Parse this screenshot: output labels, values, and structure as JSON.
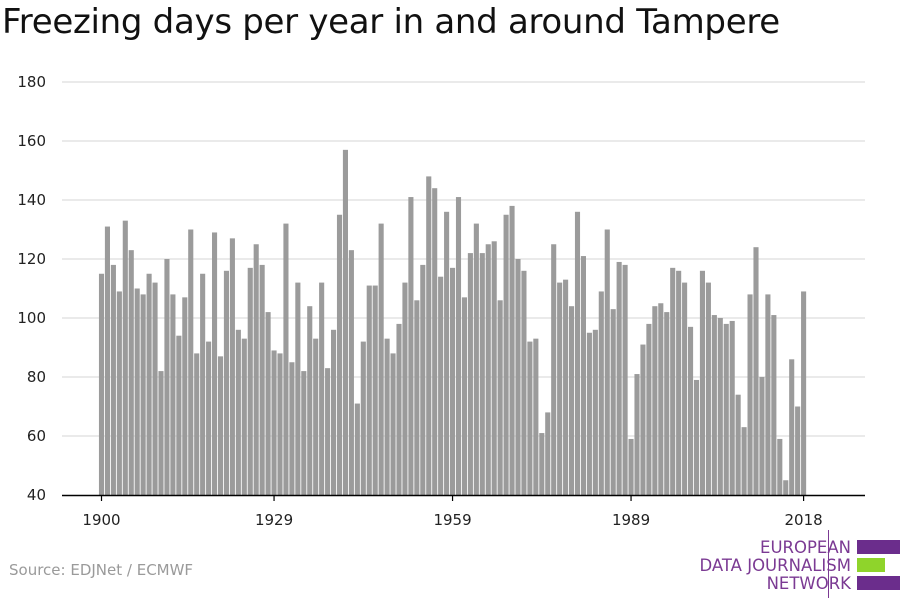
{
  "title": "Freezing days per year in and around Tampere",
  "source": "Source: EDJNet / ECMWF",
  "logo": {
    "lines": [
      "EUROPEAN",
      "DATA JOURNALISM",
      "NETWORK"
    ],
    "colors": {
      "purple": "#6b2d8c",
      "green": "#8fd42b",
      "text": "#7b3a93"
    }
  },
  "colors": {
    "bar": "#9b9b9b",
    "grid": "#dddddd",
    "axis": "#000000",
    "tick_text": "#222222"
  },
  "chart_data": {
    "type": "bar",
    "title": "Freezing days per year in and around Tampere",
    "xlabel": "",
    "ylabel": "",
    "ylim": [
      40,
      180
    ],
    "yticks": [
      40,
      60,
      80,
      100,
      120,
      140,
      160,
      180
    ],
    "xticks": [
      1900,
      1929,
      1959,
      1989,
      2018
    ],
    "grid": true,
    "x": [
      1900,
      1901,
      1902,
      1903,
      1904,
      1905,
      1906,
      1907,
      1908,
      1909,
      1910,
      1911,
      1912,
      1913,
      1914,
      1915,
      1916,
      1917,
      1918,
      1919,
      1920,
      1921,
      1922,
      1923,
      1924,
      1925,
      1926,
      1927,
      1928,
      1929,
      1930,
      1931,
      1932,
      1933,
      1934,
      1935,
      1936,
      1937,
      1938,
      1939,
      1940,
      1941,
      1942,
      1943,
      1944,
      1945,
      1946,
      1947,
      1948,
      1949,
      1950,
      1951,
      1952,
      1953,
      1954,
      1955,
      1956,
      1957,
      1958,
      1959,
      1960,
      1961,
      1962,
      1963,
      1964,
      1965,
      1966,
      1967,
      1968,
      1969,
      1970,
      1971,
      1972,
      1973,
      1974,
      1975,
      1976,
      1977,
      1978,
      1979,
      1980,
      1981,
      1982,
      1983,
      1984,
      1985,
      1986,
      1987,
      1988,
      1989,
      1990,
      1991,
      1992,
      1993,
      1994,
      1995,
      1996,
      1997,
      1998,
      1999,
      2000,
      2001,
      2002,
      2003,
      2004,
      2005,
      2006,
      2007,
      2008,
      2009,
      2010,
      2011,
      2012,
      2013,
      2014,
      2015,
      2016,
      2017,
      2018
    ],
    "values": [
      115,
      131,
      118,
      109,
      133,
      123,
      110,
      108,
      115,
      112,
      82,
      120,
      108,
      94,
      107,
      130,
      88,
      115,
      92,
      129,
      87,
      116,
      127,
      96,
      93,
      117,
      125,
      118,
      102,
      89,
      88,
      132,
      85,
      112,
      82,
      104,
      93,
      112,
      83,
      96,
      135,
      157,
      123,
      71,
      92,
      111,
      111,
      132,
      93,
      88,
      98,
      112,
      141,
      106,
      118,
      148,
      144,
      114,
      136,
      117,
      141,
      107,
      122,
      132,
      122,
      125,
      126,
      106,
      135,
      138,
      120,
      116,
      92,
      93,
      61,
      68,
      125,
      112,
      113,
      104,
      136,
      121,
      95,
      96,
      109,
      130,
      103,
      119,
      118,
      59,
      81,
      91,
      98,
      104,
      105,
      102,
      117,
      116,
      112,
      97,
      79,
      116,
      112,
      101,
      100,
      98,
      99,
      74,
      63,
      108,
      124,
      80,
      108,
      101,
      59,
      45,
      86,
      70,
      109
    ]
  }
}
